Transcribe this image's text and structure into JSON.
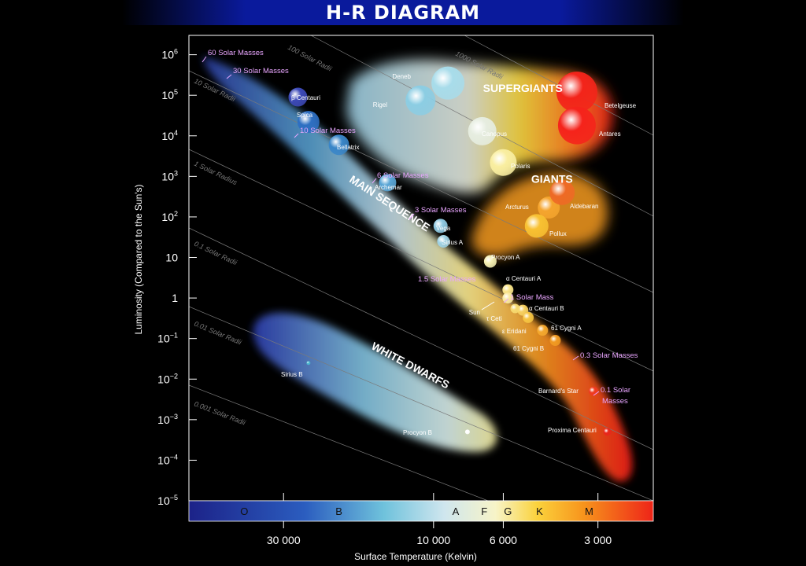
{
  "banner": {
    "title": "H-R DIAGRAM"
  },
  "chart_data": {
    "type": "scatter",
    "title": "H-R DIAGRAM",
    "xlabel": "Surface Temperature (Kelvin)",
    "ylabel": "Luminosity (Compared to the Sun's)",
    "x_scale": "log-reversed",
    "y_scale": "log",
    "xlim": [
      60000,
      2000
    ],
    "ylim": [
      1e-05,
      3000000
    ],
    "x_ticks": [
      {
        "value": 30000,
        "label": "30 000"
      },
      {
        "value": 10000,
        "label": "10 000"
      },
      {
        "value": 6000,
        "label": "6 000"
      },
      {
        "value": 3000,
        "label": "3 000"
      }
    ],
    "y_ticks": [
      {
        "value": 1000000,
        "base": "10",
        "exp": "6"
      },
      {
        "value": 100000,
        "base": "10",
        "exp": "5"
      },
      {
        "value": 10000,
        "base": "10",
        "exp": "4"
      },
      {
        "value": 1000,
        "base": "10",
        "exp": "3"
      },
      {
        "value": 100,
        "base": "10",
        "exp": "2"
      },
      {
        "value": 10,
        "base": "10",
        "exp": ""
      },
      {
        "value": 1,
        "base": "1",
        "exp": ""
      },
      {
        "value": 0.1,
        "base": "10",
        "exp": "−1"
      },
      {
        "value": 0.01,
        "base": "10",
        "exp": "−2"
      },
      {
        "value": 0.001,
        "base": "10",
        "exp": "−3"
      },
      {
        "value": 0.0001,
        "base": "10",
        "exp": "−4"
      },
      {
        "value": 1e-05,
        "base": "10",
        "exp": "−5"
      }
    ],
    "spectral_classes": [
      {
        "label": "O",
        "temp": 40000
      },
      {
        "label": "B",
        "temp": 20000
      },
      {
        "label": "A",
        "temp": 8500
      },
      {
        "label": "F",
        "temp": 6900
      },
      {
        "label": "G",
        "temp": 5800
      },
      {
        "label": "K",
        "temp": 4600
      },
      {
        "label": "M",
        "temp": 3200
      }
    ],
    "region_labels": [
      {
        "text": "SUPERGIANTS",
        "temp": 5200,
        "lum": 120000,
        "rotate": 0
      },
      {
        "text": "GIANTS",
        "temp": 4200,
        "lum": 700,
        "rotate": 0
      },
      {
        "text": "MAIN SEQUENCE",
        "temp": 14000,
        "lum": 180,
        "rotate": 33
      },
      {
        "text": "WHITE DWARFS",
        "temp": 12000,
        "lum": 0.018,
        "rotate": 28
      }
    ],
    "radius_lines": [
      {
        "label": "1000 Solar Radii"
      },
      {
        "label": "100 Solar Radii"
      },
      {
        "label": "10 Solar Radii"
      },
      {
        "label": "1 Solar Radius"
      },
      {
        "label": "0.1 Solar Radii"
      },
      {
        "label": "0.01 Solar Radii"
      },
      {
        "label": "0.001 Solar Radii"
      }
    ],
    "stars": [
      {
        "name": "β Centauri",
        "temp": 27000,
        "lum": 90000,
        "color": "#3d4ab8"
      },
      {
        "name": "Spica",
        "temp": 25000,
        "lum": 22000,
        "color": "#2e6fc2"
      },
      {
        "name": "Bellatrix",
        "temp": 20000,
        "lum": 6000,
        "color": "#3a86c8"
      },
      {
        "name": "Archemar",
        "temp": 14000,
        "lum": 700,
        "color": "#5aa6d6"
      },
      {
        "name": "Vega",
        "temp": 9500,
        "lum": 60,
        "color": "#8fc8e0"
      },
      {
        "name": "Sirius A",
        "temp": 9300,
        "lum": 25,
        "color": "#9fd2e4"
      },
      {
        "name": "Deneb",
        "temp": 9000,
        "lum": 200000,
        "color": "#a8dcea"
      },
      {
        "name": "Rigel",
        "temp": 11000,
        "lum": 75000,
        "color": "#8ccde3"
      },
      {
        "name": "Canopus",
        "temp": 7000,
        "lum": 13000,
        "color": "#e6ede0"
      },
      {
        "name": "Polaris",
        "temp": 6000,
        "lum": 2200,
        "color": "#f9eea0"
      },
      {
        "name": "Procyon A",
        "temp": 6600,
        "lum": 8,
        "color": "#f5efb2"
      },
      {
        "name": "α Centauri A",
        "temp": 5800,
        "lum": 1.6,
        "color": "#fbe68a"
      },
      {
        "name": "Sun",
        "temp": 5800,
        "lum": 1,
        "color": "#fbeaa0"
      },
      {
        "name": "α Centauri B",
        "temp": 5200,
        "lum": 0.5,
        "color": "#f7d060"
      },
      {
        "name": "τ Ceti",
        "temp": 5500,
        "lum": 0.55,
        "color": "#f7da70"
      },
      {
        "name": "ε Eridani",
        "temp": 5000,
        "lum": 0.33,
        "color": "#f6c442"
      },
      {
        "name": "61 Cygni A",
        "temp": 4500,
        "lum": 0.16,
        "color": "#f4a82e"
      },
      {
        "name": "61 Cygni B",
        "temp": 4100,
        "lum": 0.09,
        "color": "#f19a22"
      },
      {
        "name": "Arcturus",
        "temp": 4300,
        "lum": 170,
        "color": "#f5a52e"
      },
      {
        "name": "Aldebaran",
        "temp": 3900,
        "lum": 400,
        "color": "#ee6a25"
      },
      {
        "name": "Pollux",
        "temp": 4700,
        "lum": 60,
        "color": "#f8c132"
      },
      {
        "name": "Betelgeuse",
        "temp": 3500,
        "lum": 120000,
        "color": "#f3241a"
      },
      {
        "name": "Antares",
        "temp": 3500,
        "lum": 18000,
        "color": "#f5231b"
      },
      {
        "name": "Barnard's Star",
        "temp": 3100,
        "lum": 0.005,
        "color": "#ef3a1e"
      },
      {
        "name": "Proxima Centauri",
        "temp": 2800,
        "lum": 0.0005,
        "color": "#e8261a"
      },
      {
        "name": "Sirius B",
        "temp": 25000,
        "lum": 0.025,
        "color": "#4ab8d0"
      },
      {
        "name": "Procyon B",
        "temp": 7800,
        "lum": 0.0005,
        "color": "#ffffff"
      }
    ],
    "mass_labels": [
      {
        "text": "60 Solar Masses"
      },
      {
        "text": "30 Solar Masses"
      },
      {
        "text": "10 Solar Masses"
      },
      {
        "text": "6 Solar Masses"
      },
      {
        "text": "3 Solar Masses"
      },
      {
        "text": "1.5 Solar Masses"
      },
      {
        "text": "1 Solar Mass"
      },
      {
        "text": "0.3 Solar Masses"
      },
      {
        "text": "0.1 Solar"
      },
      {
        "text": "Masses"
      }
    ]
  }
}
